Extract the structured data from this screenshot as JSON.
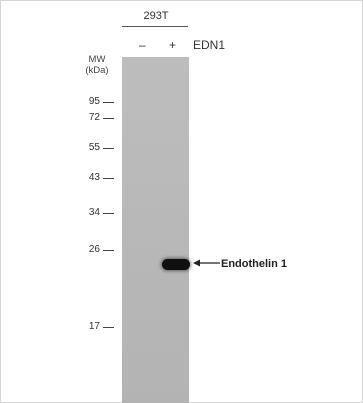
{
  "cell_line": "293T",
  "lanes": [
    "–",
    "+"
  ],
  "treatment": "EDN1",
  "mw_title": [
    "MW",
    "(kDa)"
  ],
  "markers": [
    {
      "label": "95",
      "kda": 95
    },
    {
      "label": "72",
      "kda": 72
    },
    {
      "label": "55",
      "kda": 55
    },
    {
      "label": "43",
      "kda": 43
    },
    {
      "label": "34",
      "kda": 34
    },
    {
      "label": "26",
      "kda": 26
    },
    {
      "label": "17",
      "kda": 17
    }
  ],
  "band": {
    "label": "Endothelin 1",
    "lane": "+"
  },
  "colors": {
    "membrane": "#bbbbbb",
    "band": "#101010",
    "border": "#d6d6d6"
  }
}
